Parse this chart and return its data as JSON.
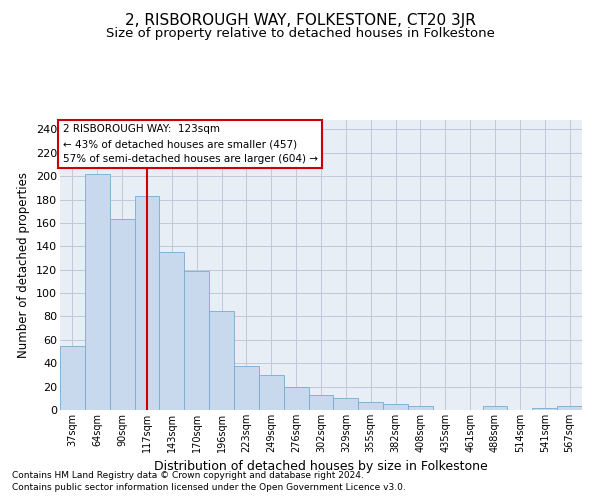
{
  "title": "2, RISBOROUGH WAY, FOLKESTONE, CT20 3JR",
  "subtitle": "Size of property relative to detached houses in Folkestone",
  "xlabel": "Distribution of detached houses by size in Folkestone",
  "ylabel": "Number of detached properties",
  "footnote1": "Contains HM Land Registry data © Crown copyright and database right 2024.",
  "footnote2": "Contains public sector information licensed under the Open Government Licence v3.0.",
  "categories": [
    "37sqm",
    "64sqm",
    "90sqm",
    "117sqm",
    "143sqm",
    "170sqm",
    "196sqm",
    "223sqm",
    "249sqm",
    "276sqm",
    "302sqm",
    "329sqm",
    "355sqm",
    "382sqm",
    "408sqm",
    "435sqm",
    "461sqm",
    "488sqm",
    "514sqm",
    "541sqm",
    "567sqm"
  ],
  "values": [
    55,
    202,
    163,
    183,
    135,
    119,
    85,
    38,
    30,
    20,
    13,
    10,
    7,
    5,
    3,
    0,
    0,
    3,
    0,
    2,
    3
  ],
  "bar_color": "#c8d9ed",
  "bar_edge_color": "#7aaad0",
  "ref_line_color": "#cc0000",
  "ref_line_x": 3.5,
  "annotation_title": "2 RISBOROUGH WAY:  123sqm",
  "annotation_line1": "← 43% of detached houses are smaller (457)",
  "annotation_line2": "57% of semi-detached houses are larger (604) →",
  "annotation_box_color": "#ffffff",
  "annotation_box_edge": "#cc0000",
  "ylim": [
    0,
    248
  ],
  "yticks": [
    0,
    20,
    40,
    60,
    80,
    100,
    120,
    140,
    160,
    180,
    200,
    220,
    240
  ],
  "background_color": "#ffffff",
  "plot_bg_color": "#e8eef5",
  "grid_color": "#c0c8d8",
  "title_fontsize": 11,
  "subtitle_fontsize": 9.5
}
